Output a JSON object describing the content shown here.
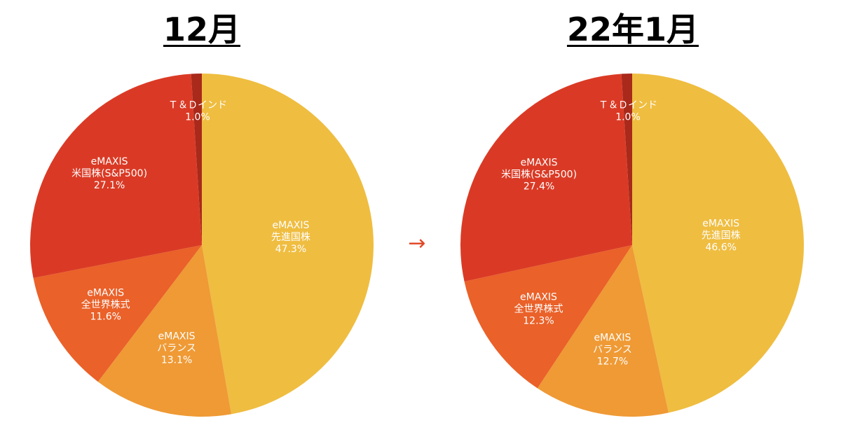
{
  "arrow_symbol": "→",
  "slice_labels": [
    {
      "name": "eMAXIS",
      "category": "先進国株"
    },
    {
      "name": "eMAXIS",
      "category": "バランス"
    },
    {
      "name": "eMAXIS",
      "category": "全世界株式"
    },
    {
      "name": "eMAXIS",
      "category": "米国株(S&P500)"
    },
    {
      "name": "",
      "category": "Ｔ＆Ｄインド"
    }
  ],
  "chart_data": [
    {
      "type": "pie",
      "title": "12月",
      "start_angle_deg": 0,
      "direction": "clockwise",
      "categories": [
        "eMAXIS 先進国株",
        "eMAXIS バランス",
        "eMAXIS 全世界株式",
        "eMAXIS 米国株(S&P500)",
        "Ｔ＆Ｄインド"
      ],
      "values": [
        47.3,
        13.1,
        11.6,
        27.1,
        1.0
      ],
      "value_labels": [
        "47.3%",
        "13.1%",
        "11.6%",
        "27.1%",
        "1.0%"
      ],
      "colors": [
        "#EFBD40",
        "#EF9A35",
        "#EA6129",
        "#DA3A25",
        "#A9291B"
      ]
    },
    {
      "type": "pie",
      "title": "22年1月",
      "start_angle_deg": 0,
      "direction": "clockwise",
      "categories": [
        "eMAXIS 先進国株",
        "eMAXIS バランス",
        "eMAXIS 全世界株式",
        "eMAXIS 米国株(S&P500)",
        "Ｔ＆Ｄインド"
      ],
      "values": [
        46.6,
        12.7,
        12.3,
        27.4,
        1.0
      ],
      "value_labels": [
        "46.6%",
        "12.7%",
        "12.3%",
        "27.4%",
        "1.0%"
      ],
      "colors": [
        "#EFBD40",
        "#EF9A35",
        "#EA6129",
        "#DA3A25",
        "#A9291B"
      ]
    }
  ]
}
